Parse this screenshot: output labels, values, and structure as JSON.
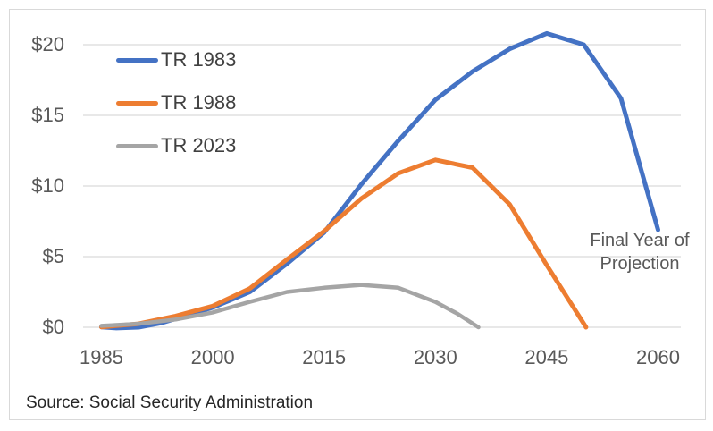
{
  "chart_data": {
    "type": "line",
    "title": "",
    "grid": "horizontal",
    "legend_position": "top-left-inside",
    "y_axis": {
      "ticks": [
        {
          "label": "$0",
          "value": 0
        },
        {
          "label": "$5",
          "value": 5
        },
        {
          "label": "$10",
          "value": 10
        },
        {
          "label": "$15",
          "value": 15
        },
        {
          "label": "$20",
          "value": 20
        }
      ],
      "range": [
        0,
        21.5
      ]
    },
    "x_axis": {
      "ticks": [
        {
          "label": "1985",
          "value": 1985
        },
        {
          "label": "2000",
          "value": 2000
        },
        {
          "label": "2015",
          "value": 2015
        },
        {
          "label": "2030",
          "value": 2030
        },
        {
          "label": "2045",
          "value": 2045
        },
        {
          "label": "2060",
          "value": 2060
        }
      ],
      "range": [
        1982.5,
        2063
      ]
    },
    "series": [
      {
        "name": "TR 1983",
        "color": "#4472C4",
        "stroke_width": 5,
        "points": [
          [
            1985,
            0.02
          ],
          [
            1987,
            -0.06
          ],
          [
            1990,
            0.0
          ],
          [
            1993,
            0.3
          ],
          [
            1995,
            0.6
          ],
          [
            2000,
            1.4
          ],
          [
            2005,
            2.5
          ],
          [
            2010,
            4.5
          ],
          [
            2015,
            6.7
          ],
          [
            2020,
            10.1
          ],
          [
            2025,
            13.2
          ],
          [
            2030,
            16.1
          ],
          [
            2035,
            18.1
          ],
          [
            2040,
            19.7
          ],
          [
            2045,
            20.8
          ],
          [
            2050,
            20.0
          ],
          [
            2055,
            16.2
          ],
          [
            2060,
            6.9
          ]
        ]
      },
      {
        "name": "TR 1988",
        "color": "#ED7D31",
        "stroke_width": 5,
        "points": [
          [
            1985,
            0.02
          ],
          [
            1990,
            0.25
          ],
          [
            1995,
            0.8
          ],
          [
            2000,
            1.5
          ],
          [
            2005,
            2.75
          ],
          [
            2010,
            4.8
          ],
          [
            2015,
            6.8
          ],
          [
            2020,
            9.1
          ],
          [
            2025,
            10.9
          ],
          [
            2030,
            11.85
          ],
          [
            2035,
            11.3
          ],
          [
            2040,
            8.7
          ],
          [
            2045,
            4.4
          ],
          [
            2050.3,
            0.0
          ]
        ]
      },
      {
        "name": "TR 2023",
        "color": "#A5A5A5",
        "stroke_width": 4.5,
        "points": [
          [
            1985,
            0.1
          ],
          [
            1990,
            0.25
          ],
          [
            1995,
            0.55
          ],
          [
            2000,
            1.05
          ],
          [
            2005,
            1.8
          ],
          [
            2010,
            2.5
          ],
          [
            2015,
            2.8
          ],
          [
            2020,
            3.0
          ],
          [
            2025,
            2.8
          ],
          [
            2030,
            1.8
          ],
          [
            2033,
            0.95
          ],
          [
            2035.8,
            0.0
          ]
        ]
      }
    ],
    "annotation": {
      "lines": [
        "Final Year of",
        "Projection"
      ]
    },
    "source": "Source: Social Security Administration",
    "colors": {
      "gridline": "#D9D9D9",
      "border": "#D9D9D9",
      "axis_text": "#595959",
      "legend_text": "#404040",
      "annotation_text": "#595959",
      "source_text": "#262626"
    }
  }
}
